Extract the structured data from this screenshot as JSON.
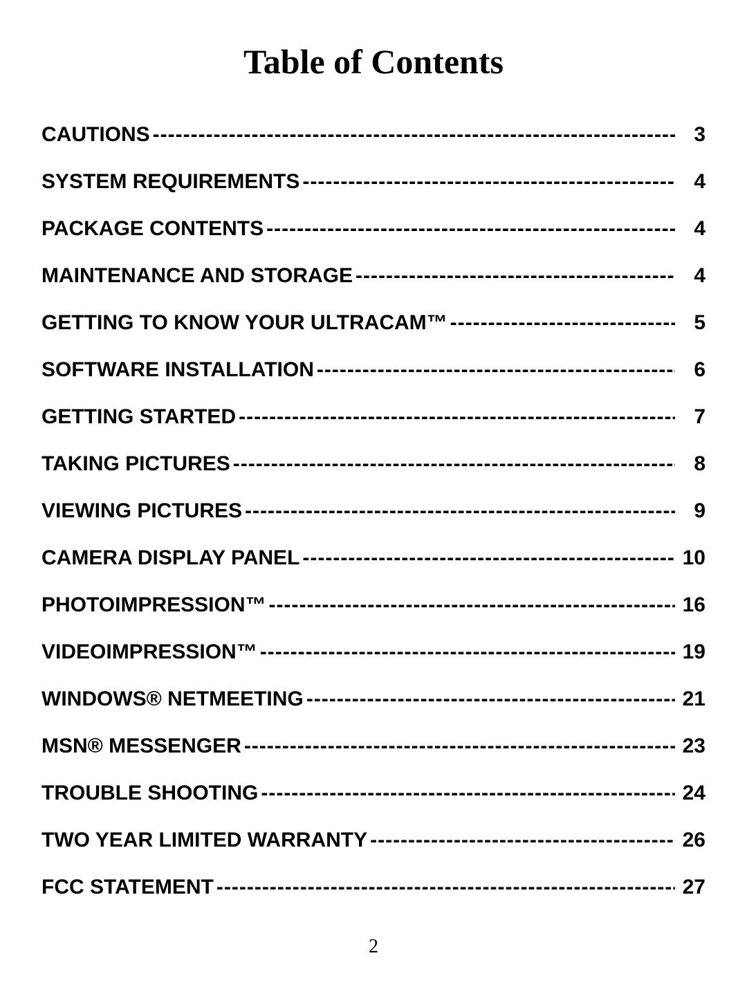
{
  "title": "Table of Contents",
  "page_number": "2",
  "entries": [
    {
      "label": "CAUTIONS",
      "page": "3"
    },
    {
      "label": "SYSTEM REQUIREMENTS",
      "page": "4"
    },
    {
      "label": "PACKAGE CONTENTS",
      "page": "4"
    },
    {
      "label": "MAINTENANCE AND STORAGE",
      "page": "4"
    },
    {
      "label": "GETTING TO KNOW YOUR ULTRACAM™",
      "page": "5"
    },
    {
      "label": "SOFTWARE INSTALLATION",
      "page": "6"
    },
    {
      "label": "GETTING STARTED",
      "page": "7"
    },
    {
      "label": "TAKING PICTURES",
      "page": "8"
    },
    {
      "label": "VIEWING PICTURES",
      "page": "9"
    },
    {
      "label": "CAMERA DISPLAY PANEL",
      "page": "10"
    },
    {
      "label": "PHOTOIMPRESSION™",
      "page": "16"
    },
    {
      "label": "VIDEOIMPRESSION™",
      "page": "19"
    },
    {
      "label": "WINDOWS® NETMEETING",
      "page": "21"
    },
    {
      "label": "MSN® MESSENGER",
      "page": "23"
    },
    {
      "label": "TROUBLE SHOOTING",
      "page": "24"
    },
    {
      "label": "TWO YEAR LIMITED WARRANTY",
      "page": "26"
    },
    {
      "label": "FCC STATEMENT",
      "page": "27"
    }
  ],
  "style": {
    "title_font_family": "Times New Roman",
    "title_font_size_pt": 28,
    "entry_font_family": "Arial",
    "entry_font_size_pt": 16,
    "text_color": "#000000",
    "background_color": "#ffffff",
    "leader_char": "-"
  }
}
